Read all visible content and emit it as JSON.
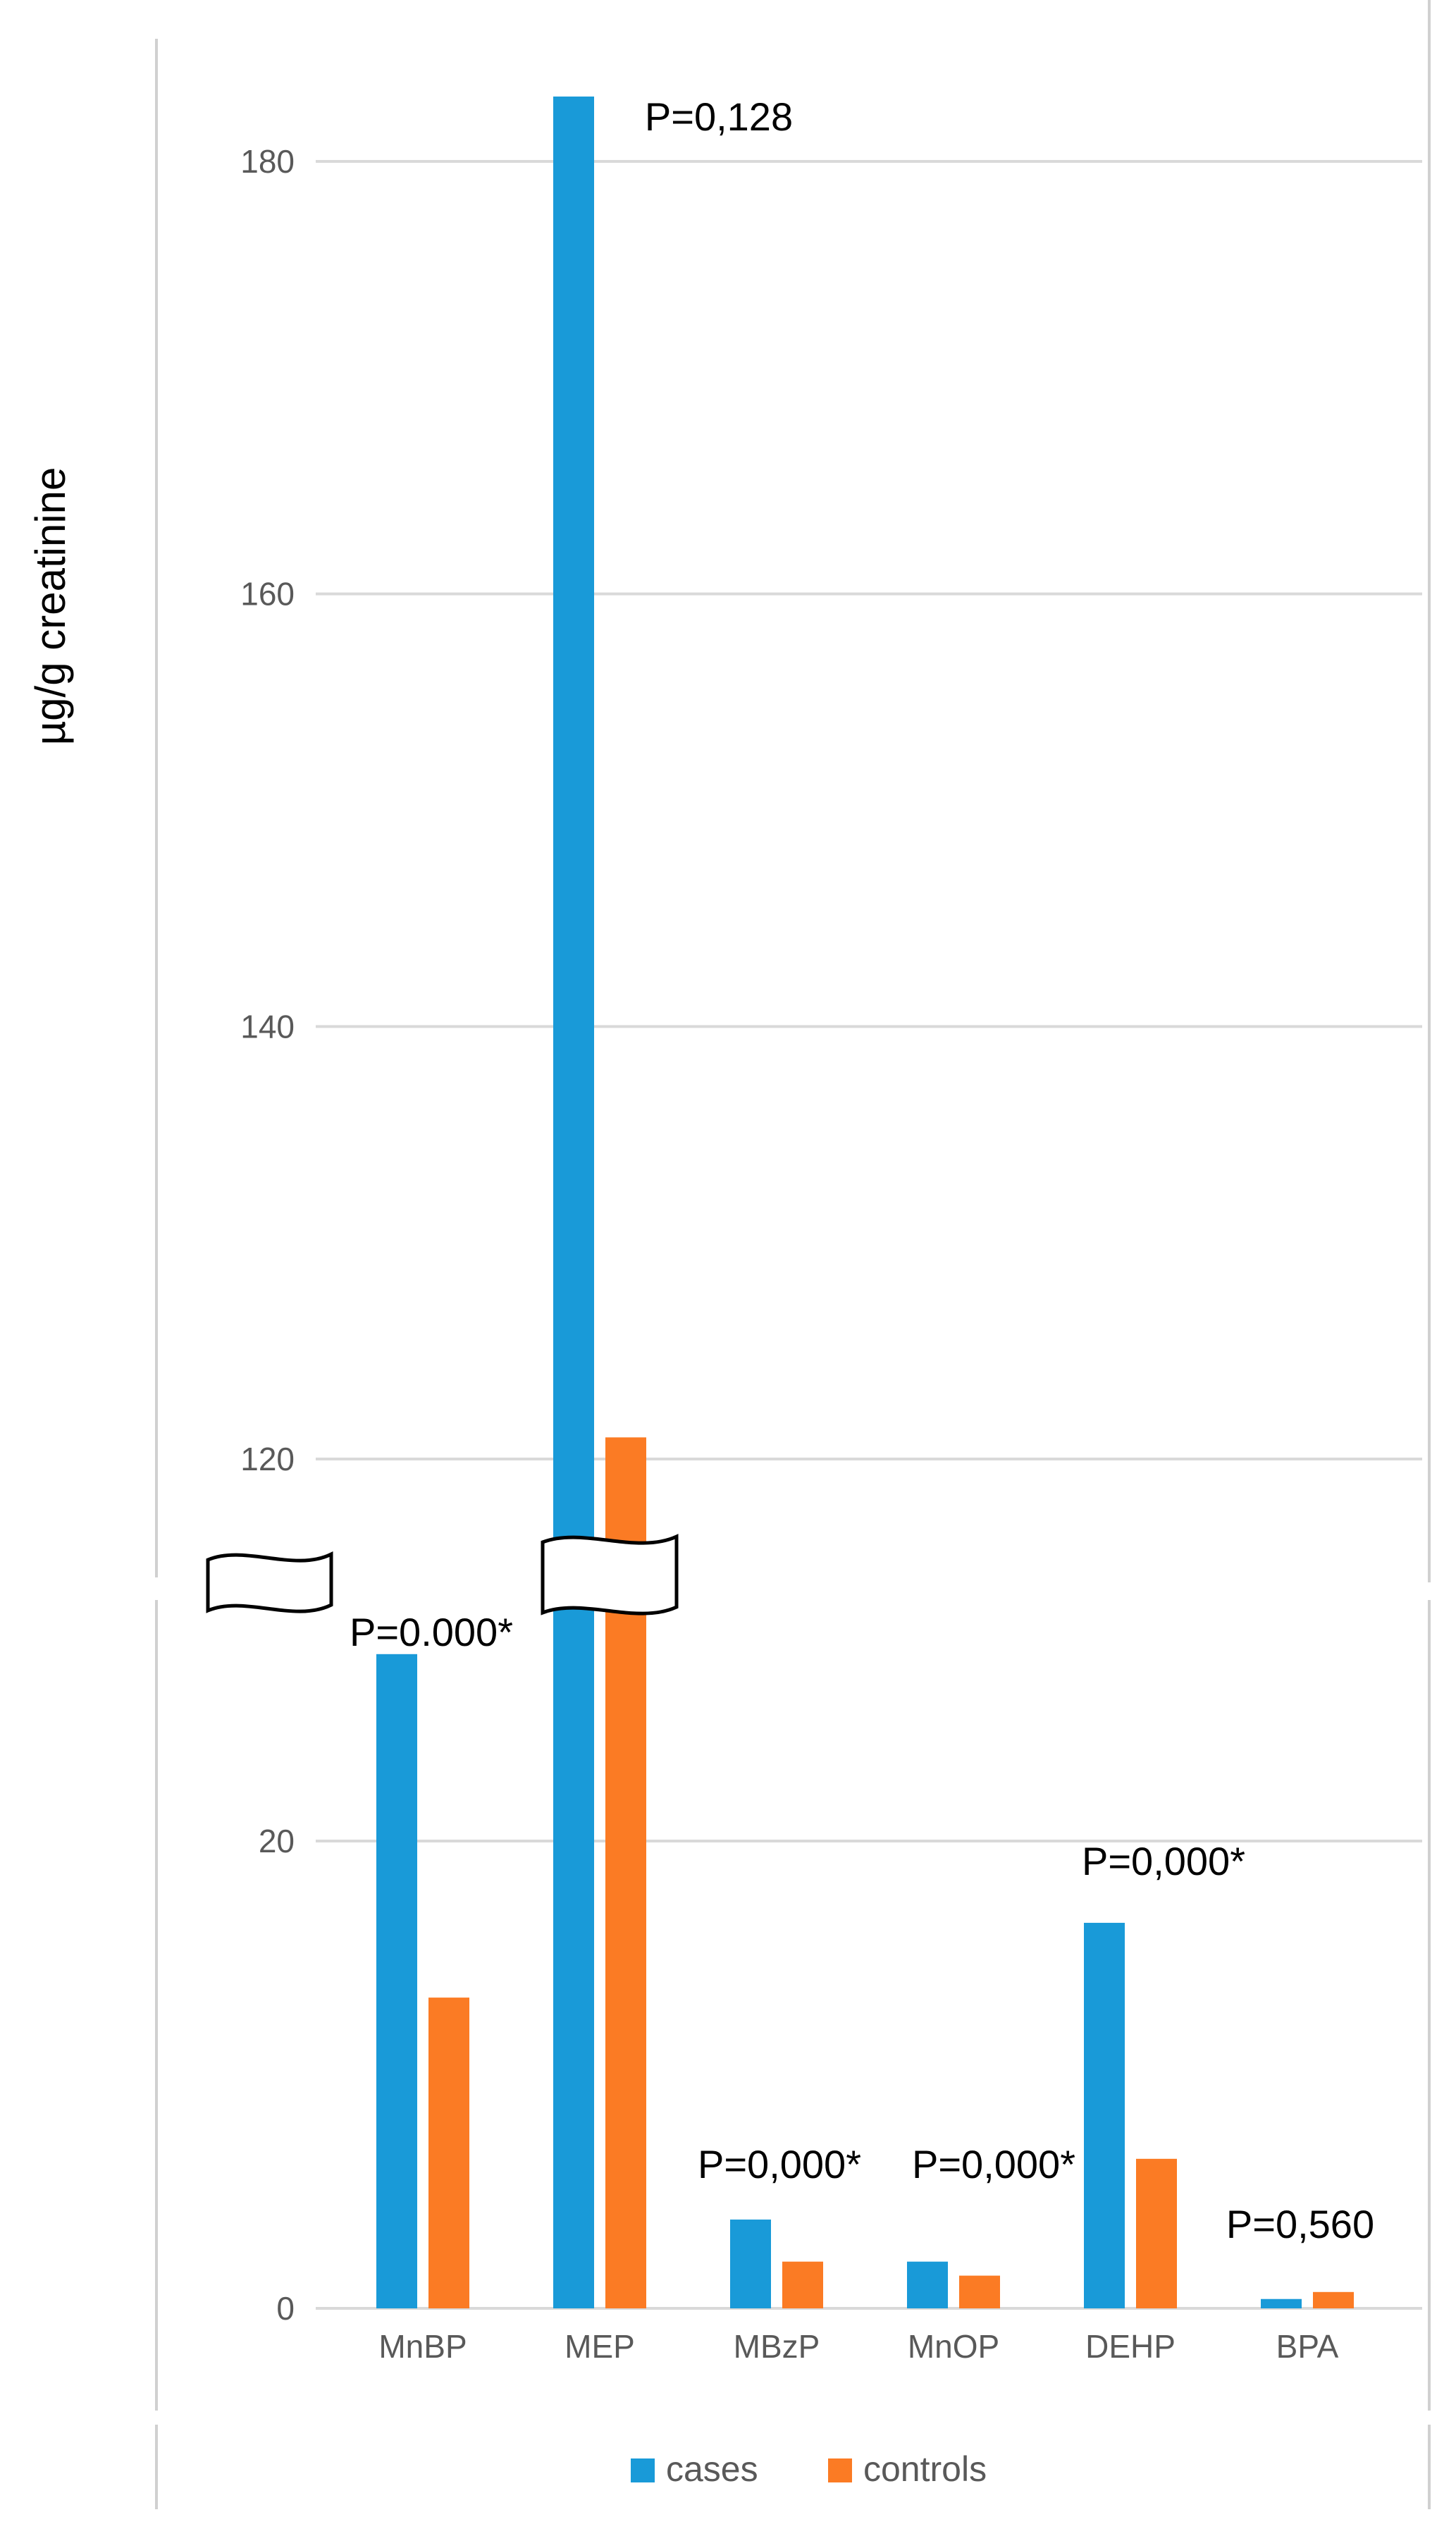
{
  "chart_data": {
    "type": "bar",
    "title": "",
    "xlabel": "",
    "ylabel": "µg/g creatinine",
    "categories": [
      "MnBP",
      "MEP",
      "MBzP",
      "MnOP",
      "DEHP",
      "BPA"
    ],
    "series": [
      {
        "name": "cases",
        "color": "#199AD8",
        "values": [
          28.0,
          183.0,
          3.8,
          2.0,
          16.5,
          0.4
        ]
      },
      {
        "name": "controls",
        "color": "#FB7B24",
        "values": [
          13.3,
          121.0,
          2.0,
          1.4,
          6.4,
          0.7
        ]
      }
    ],
    "axis_break": true,
    "lower_segment": {
      "ylim": [
        0,
        20
      ],
      "ticks": [
        0,
        20
      ]
    },
    "upper_segment": {
      "ylim": [
        115,
        185
      ],
      "ticks": [
        120,
        140,
        160,
        180
      ]
    },
    "gridlines": true,
    "legend_position": "bottom",
    "annotations": [
      {
        "category": "MnBP",
        "text": "P=0.000*"
      },
      {
        "category": "MEP",
        "text": "P=0,128"
      },
      {
        "category": "MBzP",
        "text": "P=0,000*"
      },
      {
        "category": "MnOP",
        "text": "P=0,000*"
      },
      {
        "category": "DEHP",
        "text": "P=0,000*"
      },
      {
        "category": "BPA",
        "text": "P=0,560"
      }
    ]
  }
}
